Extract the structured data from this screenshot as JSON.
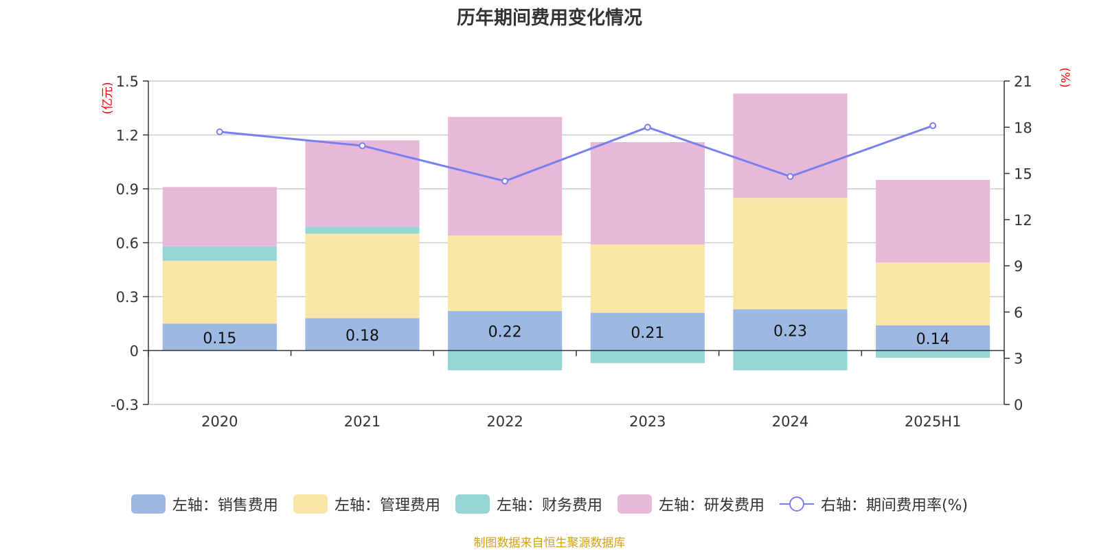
{
  "chart_data": {
    "type": "bar",
    "title": "历年期间费用变化情况",
    "categories": [
      "2020",
      "2021",
      "2022",
      "2023",
      "2024",
      "2025H1"
    ],
    "left_axis": {
      "unit_label": "(亿元)",
      "ticks": [
        "-0.3",
        "0",
        "0.3",
        "0.6",
        "0.9",
        "1.2",
        "1.5"
      ],
      "ylim": [
        -0.3,
        1.5
      ]
    },
    "right_axis": {
      "unit_label": "(%)",
      "ticks": [
        "0",
        "3",
        "6",
        "9",
        "12",
        "15",
        "18",
        "21"
      ],
      "ylim": [
        0,
        21
      ]
    },
    "series": [
      {
        "name": "左轴：销售费用",
        "type": "bar",
        "color": "#9db8e3",
        "values": [
          0.15,
          0.18,
          0.22,
          0.21,
          0.23,
          0.14
        ],
        "data_labels": [
          "0.15",
          "0.18",
          "0.22",
          "0.21",
          "0.23",
          "0.14"
        ]
      },
      {
        "name": "左轴：管理费用",
        "type": "bar",
        "color": "#f8e7a8",
        "values": [
          0.35,
          0.47,
          0.42,
          0.38,
          0.62,
          0.35
        ]
      },
      {
        "name": "左轴：财务费用",
        "type": "bar",
        "color": "#95d5d3",
        "values": [
          0.08,
          0.04,
          -0.11,
          -0.07,
          -0.11,
          -0.04
        ]
      },
      {
        "name": "左轴：研发费用",
        "type": "bar",
        "color": "#e8b8d9",
        "values": [
          0.33,
          0.48,
          0.66,
          0.57,
          0.58,
          0.46
        ]
      },
      {
        "name": "右轴：期间费用率(%)",
        "type": "line",
        "axis": "right",
        "color": "#7a7ff0",
        "values": [
          17.7,
          16.8,
          14.5,
          18.0,
          14.8,
          18.1
        ]
      }
    ],
    "grid": true,
    "legend_position": "bottom"
  },
  "source_note": "制图数据来自恒生聚源数据库"
}
